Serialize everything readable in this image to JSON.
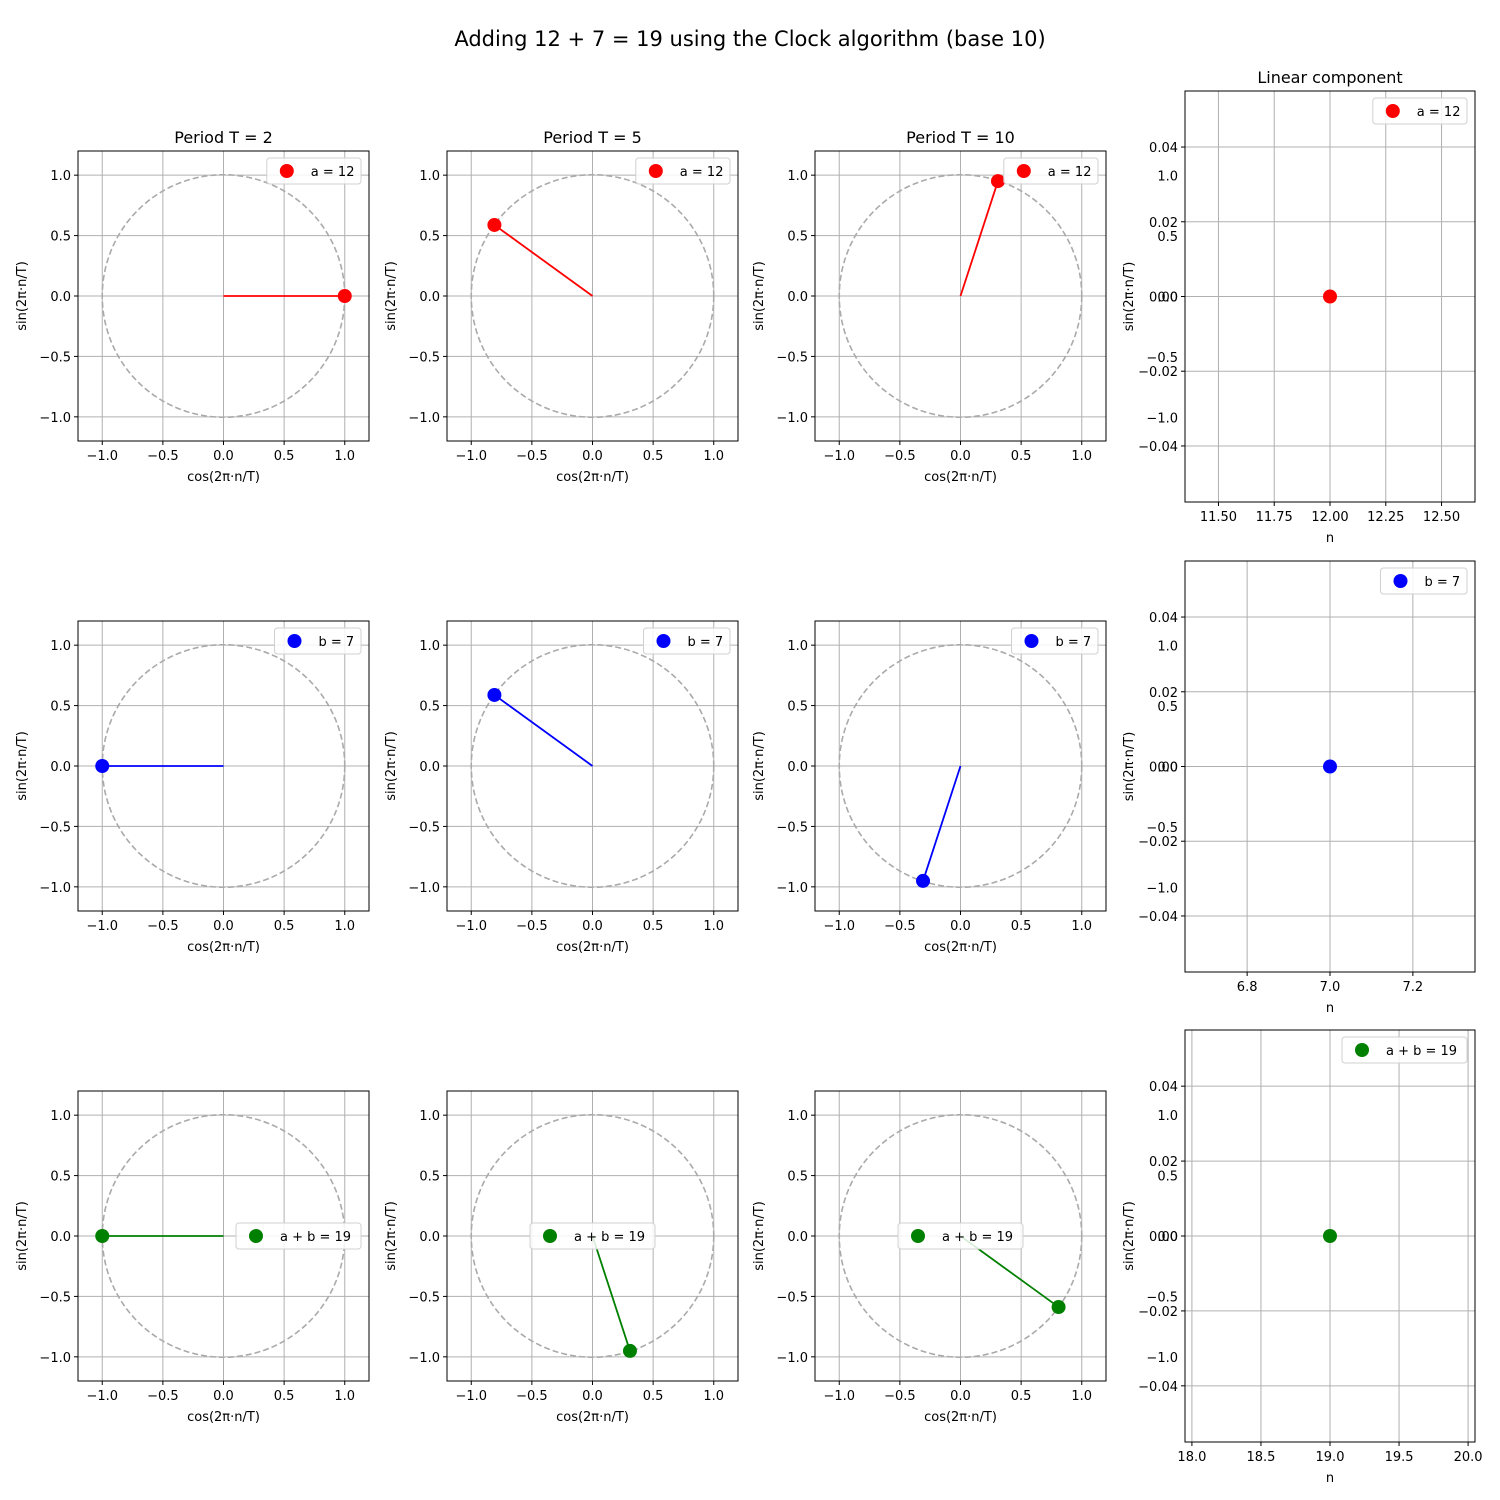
{
  "figure": {
    "title": "Adding 12 + 7 = 19 using the Clock algorithm (base 10)",
    "colors": {
      "a": "#ff0000",
      "b": "#0000ff",
      "sum": "#008000",
      "circle": "#aaaaaa",
      "grid": "#b0b0b0"
    }
  },
  "chart_data": [
    {
      "type": "scatter",
      "row": 0,
      "col": 0,
      "title": "Period T = 2",
      "xlabel": "cos(2π·n/T)",
      "ylabel": "sin(2π·n/T)",
      "xlim": [
        -1.2,
        1.2
      ],
      "ylim": [
        -1.2,
        1.2
      ],
      "xticks": [
        -1.0,
        -0.5,
        0.0,
        0.5,
        1.0
      ],
      "yticks": [
        -1.0,
        -0.5,
        0.0,
        0.5,
        1.0
      ],
      "grid": true,
      "unit_circle": true,
      "legend": "upper right",
      "series": [
        {
          "name": "a = 12",
          "color": "red",
          "n": 12,
          "T": 2,
          "x": 1.0,
          "y": 0.0
        }
      ]
    },
    {
      "type": "scatter",
      "row": 0,
      "col": 1,
      "title": "Period T = 5",
      "xlabel": "cos(2π·n/T)",
      "ylabel": "sin(2π·n/T)",
      "xlim": [
        -1.2,
        1.2
      ],
      "ylim": [
        -1.2,
        1.2
      ],
      "xticks": [
        -1.0,
        -0.5,
        0.0,
        0.5,
        1.0
      ],
      "yticks": [
        -1.0,
        -0.5,
        0.0,
        0.5,
        1.0
      ],
      "grid": true,
      "unit_circle": true,
      "legend": "upper right",
      "series": [
        {
          "name": "a = 12",
          "color": "red",
          "n": 12,
          "T": 5,
          "x": -0.809,
          "y": 0.588
        }
      ]
    },
    {
      "type": "scatter",
      "row": 0,
      "col": 2,
      "title": "Period T = 10",
      "xlabel": "cos(2π·n/T)",
      "ylabel": "sin(2π·n/T)",
      "xlim": [
        -1.2,
        1.2
      ],
      "ylim": [
        -1.2,
        1.2
      ],
      "xticks": [
        -1.0,
        -0.5,
        0.0,
        0.5,
        1.0
      ],
      "yticks": [
        -1.0,
        -0.5,
        0.0,
        0.5,
        1.0
      ],
      "grid": true,
      "unit_circle": true,
      "legend": "upper right",
      "series": [
        {
          "name": "a = 12",
          "color": "red",
          "n": 12,
          "T": 10,
          "x": 0.309,
          "y": 0.951
        }
      ]
    },
    {
      "type": "scatter",
      "row": 0,
      "col": 3,
      "linear": true,
      "title": "Linear component",
      "xlabel": "n",
      "ylabel": "sin(2π·n/T)",
      "xlim": [
        11.35,
        12.65
      ],
      "ylim": [
        -0.055,
        0.055
      ],
      "xticks": [
        11.5,
        11.75,
        12.0,
        12.25,
        12.5
      ],
      "xtick_labels": [
        "11.50",
        "11.75",
        "12.00",
        "12.25",
        "12.50"
      ],
      "yticks": [
        -0.04,
        -0.02,
        0.0,
        0.02,
        0.04
      ],
      "yticks_overlay": [
        -1.0,
        -0.5,
        0.0,
        0.5,
        1.0
      ],
      "grid": true,
      "legend": "upper right",
      "series": [
        {
          "name": "a = 12",
          "color": "red",
          "x": 12.0,
          "y": 0.0
        }
      ]
    },
    {
      "type": "scatter",
      "row": 1,
      "col": 0,
      "title": "",
      "xlabel": "cos(2π·n/T)",
      "ylabel": "sin(2π·n/T)",
      "xlim": [
        -1.2,
        1.2
      ],
      "ylim": [
        -1.2,
        1.2
      ],
      "xticks": [
        -1.0,
        -0.5,
        0.0,
        0.5,
        1.0
      ],
      "yticks": [
        -1.0,
        -0.5,
        0.0,
        0.5,
        1.0
      ],
      "grid": true,
      "unit_circle": true,
      "legend": "upper right",
      "series": [
        {
          "name": "b = 7",
          "color": "blue",
          "n": 7,
          "T": 2,
          "x": -1.0,
          "y": 0.0
        }
      ]
    },
    {
      "type": "scatter",
      "row": 1,
      "col": 1,
      "title": "",
      "xlabel": "cos(2π·n/T)",
      "ylabel": "sin(2π·n/T)",
      "xlim": [
        -1.2,
        1.2
      ],
      "ylim": [
        -1.2,
        1.2
      ],
      "xticks": [
        -1.0,
        -0.5,
        0.0,
        0.5,
        1.0
      ],
      "yticks": [
        -1.0,
        -0.5,
        0.0,
        0.5,
        1.0
      ],
      "grid": true,
      "unit_circle": true,
      "legend": "upper right",
      "series": [
        {
          "name": "b = 7",
          "color": "blue",
          "n": 7,
          "T": 5,
          "x": -0.809,
          "y": 0.588
        }
      ]
    },
    {
      "type": "scatter",
      "row": 1,
      "col": 2,
      "title": "",
      "xlabel": "cos(2π·n/T)",
      "ylabel": "sin(2π·n/T)",
      "xlim": [
        -1.2,
        1.2
      ],
      "ylim": [
        -1.2,
        1.2
      ],
      "xticks": [
        -1.0,
        -0.5,
        0.0,
        0.5,
        1.0
      ],
      "yticks": [
        -1.0,
        -0.5,
        0.0,
        0.5,
        1.0
      ],
      "grid": true,
      "unit_circle": true,
      "legend": "upper right",
      "series": [
        {
          "name": "b = 7",
          "color": "blue",
          "n": 7,
          "T": 10,
          "x": -0.309,
          "y": -0.951
        }
      ]
    },
    {
      "type": "scatter",
      "row": 1,
      "col": 3,
      "linear": true,
      "title": "",
      "xlabel": "n",
      "ylabel": "sin(2π·n/T)",
      "xlim": [
        6.65,
        7.35
      ],
      "ylim": [
        -0.055,
        0.055
      ],
      "xticks": [
        6.8,
        7.0,
        7.2
      ],
      "xtick_labels": [
        "6.8",
        "7.0",
        "7.2"
      ],
      "yticks": [
        -0.04,
        -0.02,
        0.0,
        0.02,
        0.04
      ],
      "yticks_overlay": [
        -1.0,
        -0.5,
        0.0,
        0.5,
        1.0
      ],
      "grid": true,
      "legend": "upper right",
      "series": [
        {
          "name": "b = 7",
          "color": "blue",
          "x": 7.0,
          "y": 0.0
        }
      ]
    },
    {
      "type": "scatter",
      "row": 2,
      "col": 0,
      "title": "",
      "xlabel": "cos(2π·n/T)",
      "ylabel": "sin(2π·n/T)",
      "xlim": [
        -1.2,
        1.2
      ],
      "ylim": [
        -1.2,
        1.2
      ],
      "xticks": [
        -1.0,
        -0.5,
        0.0,
        0.5,
        1.0
      ],
      "yticks": [
        -1.0,
        -0.5,
        0.0,
        0.5,
        1.0
      ],
      "grid": true,
      "unit_circle": true,
      "legend": "center right",
      "series": [
        {
          "name": "a + b = 19",
          "color": "green",
          "n": 19,
          "T": 2,
          "x": -1.0,
          "y": 0.0
        }
      ]
    },
    {
      "type": "scatter",
      "row": 2,
      "col": 1,
      "title": "",
      "xlabel": "cos(2π·n/T)",
      "ylabel": "sin(2π·n/T)",
      "xlim": [
        -1.2,
        1.2
      ],
      "ylim": [
        -1.2,
        1.2
      ],
      "xticks": [
        -1.0,
        -0.5,
        0.0,
        0.5,
        1.0
      ],
      "yticks": [
        -1.0,
        -0.5,
        0.0,
        0.5,
        1.0
      ],
      "grid": true,
      "unit_circle": true,
      "legend": "center",
      "series": [
        {
          "name": "a + b = 19",
          "color": "green",
          "n": 19,
          "T": 5,
          "x": 0.309,
          "y": -0.951
        }
      ]
    },
    {
      "type": "scatter",
      "row": 2,
      "col": 2,
      "title": "",
      "xlabel": "cos(2π·n/T)",
      "ylabel": "sin(2π·n/T)",
      "xlim": [
        -1.2,
        1.2
      ],
      "ylim": [
        -1.2,
        1.2
      ],
      "xticks": [
        -1.0,
        -0.5,
        0.0,
        0.5,
        1.0
      ],
      "yticks": [
        -1.0,
        -0.5,
        0.0,
        0.5,
        1.0
      ],
      "grid": true,
      "unit_circle": true,
      "legend": "center",
      "series": [
        {
          "name": "a + b = 19",
          "color": "green",
          "n": 19,
          "T": 10,
          "x": 0.809,
          "y": -0.588
        }
      ]
    },
    {
      "type": "scatter",
      "row": 2,
      "col": 3,
      "linear": true,
      "title": "",
      "xlabel": "n",
      "ylabel": "sin(2π·n/T)",
      "xlim": [
        17.95,
        20.05
      ],
      "ylim": [
        -0.055,
        0.055
      ],
      "xticks": [
        18.0,
        18.5,
        19.0,
        19.5,
        20.0
      ],
      "xtick_labels": [
        "18.0",
        "18.5",
        "19.0",
        "19.5",
        "20.0"
      ],
      "yticks": [
        -0.04,
        -0.02,
        0.0,
        0.02,
        0.04
      ],
      "yticks_overlay": [
        -1.0,
        -0.5,
        0.0,
        0.5,
        1.0
      ],
      "grid": true,
      "legend": "upper right",
      "series": [
        {
          "name": "a + b = 19",
          "color": "green",
          "x": 19.0,
          "y": 0.0
        }
      ]
    }
  ]
}
